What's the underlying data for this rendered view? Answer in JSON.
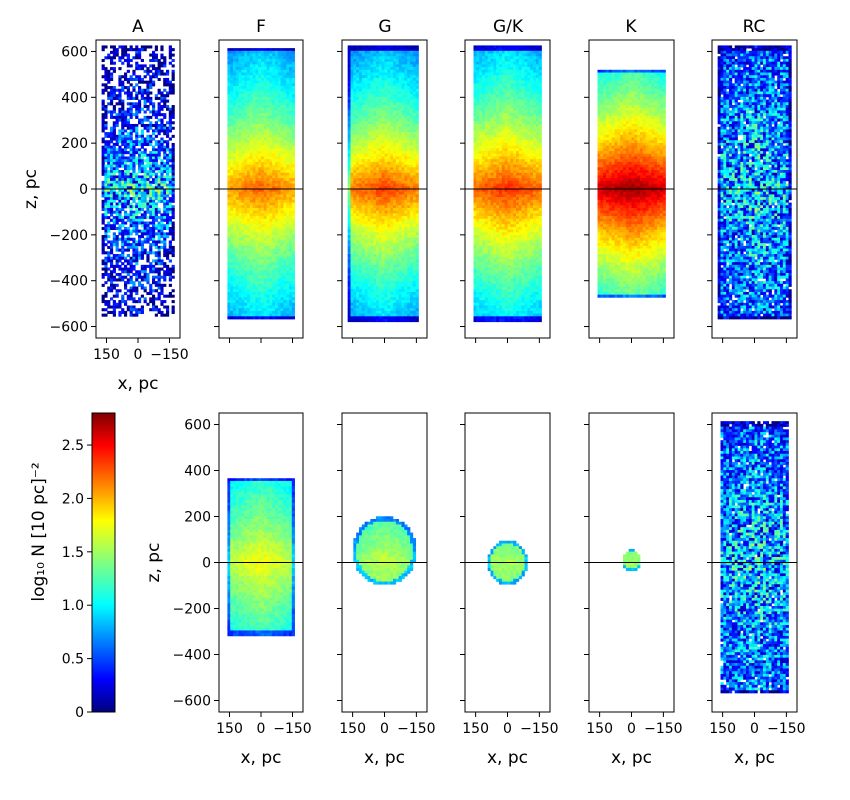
{
  "chart_data": {
    "type": "heatmap",
    "description_axes": {
      "x": "x,  pc",
      "z": "z,  pc"
    },
    "xlim": [
      200,
      -200
    ],
    "zlim": [
      -650,
      650
    ],
    "x_ticks": [
      150,
      0,
      -150
    ],
    "x_tick_labels": [
      "150",
      "0",
      "−150"
    ],
    "z_ticks": [
      600,
      400,
      200,
      0,
      -200,
      -400,
      -600
    ],
    "z_tick_labels": [
      "600",
      "400",
      "200",
      "0",
      "−200",
      "−400",
      "−600"
    ],
    "colorbar": {
      "label": "log₁₀ N [10 pc]⁻²",
      "range": [
        0,
        2.8
      ],
      "ticks": [
        0,
        0.5,
        1.0,
        1.5,
        2.0,
        2.5
      ],
      "tick_labels": [
        "0",
        "0.5",
        "1.0",
        "1.5",
        "2.0",
        "2.5"
      ],
      "colormap": "jet"
    },
    "rows": [
      {
        "panels": [
          {
            "title": "A",
            "shape": "box",
            "x_range": [
              170,
              -170
            ],
            "z_range": [
              -560,
              630
            ],
            "peak": 1.3,
            "scale_height": 330,
            "sparse": 0.55,
            "show_z_labels": true,
            "show_x_labels": true
          },
          {
            "title": "F",
            "shape": "box",
            "x_range": [
              165,
              -165
            ],
            "z_range": [
              -570,
              620
            ],
            "peak": 2.2,
            "scale_height": 700,
            "sparse": 0,
            "show_z_labels": false,
            "show_x_labels": false
          },
          {
            "title": "G",
            "shape": "box",
            "x_range": [
              170,
              -165
            ],
            "z_range": [
              -575,
              625
            ],
            "peak": 2.3,
            "scale_height": 650,
            "sparse": 0,
            "show_z_labels": false,
            "show_x_labels": false
          },
          {
            "title": "G/K",
            "shape": "box",
            "x_range": [
              165,
              -165
            ],
            "z_range": [
              -575,
              625
            ],
            "peak": 2.35,
            "scale_height": 700,
            "sparse": 0,
            "show_z_labels": false,
            "show_x_labels": false
          },
          {
            "title": "K",
            "shape": "box",
            "x_range": [
              165,
              -165
            ],
            "z_range": [
              -475,
              525
            ],
            "peak": 2.75,
            "scale_height": 650,
            "sparse": 0,
            "show_z_labels": false,
            "show_x_labels": false
          },
          {
            "title": "RC",
            "shape": "box",
            "x_range": [
              170,
              -170
            ],
            "z_range": [
              -570,
              625
            ],
            "peak": 1.15,
            "scale_height": 1400,
            "sparse": 0.15,
            "show_z_labels": false,
            "show_x_labels": false
          }
        ]
      },
      {
        "panels": [
          {
            "title": "",
            "shape": "box",
            "x_range": [
              160,
              -160
            ],
            "z_range": [
              -320,
              370
            ],
            "peak": 1.75,
            "scale_height": 900,
            "sparse": 0,
            "show_z_labels": true,
            "show_x_labels": true
          },
          {
            "title": "",
            "shape": "circle",
            "center": [
              0,
              50
            ],
            "radius": 150,
            "peak": 1.6,
            "scale_height": 900,
            "sparse": 0,
            "show_z_labels": false,
            "show_x_labels": true
          },
          {
            "title": "",
            "shape": "circle",
            "center": [
              0,
              0
            ],
            "radius": 95,
            "peak": 1.55,
            "scale_height": 900,
            "sparse": 0,
            "show_z_labels": false,
            "show_x_labels": true
          },
          {
            "title": "",
            "shape": "circle",
            "center": [
              0,
              10
            ],
            "radius": 45,
            "peak": 1.5,
            "scale_height": 900,
            "sparse": 0,
            "show_z_labels": false,
            "show_x_labels": true
          },
          {
            "title": "",
            "shape": "box",
            "x_range": [
              165,
              -165
            ],
            "z_range": [
              -570,
              615
            ],
            "peak": 1.15,
            "scale_height": 1400,
            "sparse": 0.15,
            "show_z_labels": false,
            "show_x_labels": true
          }
        ]
      }
    ]
  }
}
